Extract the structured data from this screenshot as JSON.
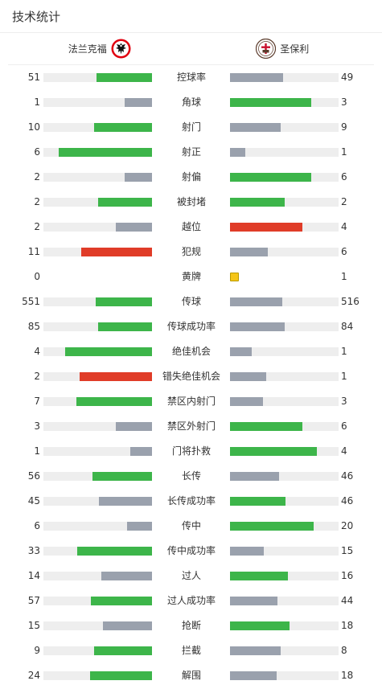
{
  "header": {
    "title": "技术统计"
  },
  "teams": {
    "home": {
      "name": "法兰克福",
      "logo": "eagle-crest-icon"
    },
    "away": {
      "name": "圣保利",
      "logo": "skull-crest-icon"
    }
  },
  "colors": {
    "win": "#3db54a",
    "lose": "#9aa1ad",
    "red": "#e03c28",
    "yellow": "#f5c518",
    "track": "#eeeeee"
  },
  "stats": [
    {
      "label": "控球率",
      "home": "51",
      "away": "49",
      "home_pct": 0.51,
      "away_pct": 0.49,
      "home_color": "win",
      "away_color": "lose"
    },
    {
      "label": "角球",
      "home": "1",
      "away": "3",
      "home_pct": 0.25,
      "away_pct": 0.75,
      "home_color": "lose",
      "away_color": "win"
    },
    {
      "label": "射门",
      "home": "10",
      "away": "9",
      "home_pct": 0.53,
      "away_pct": 0.47,
      "home_color": "win",
      "away_color": "lose"
    },
    {
      "label": "射正",
      "home": "6",
      "away": "1",
      "home_pct": 0.86,
      "away_pct": 0.14,
      "home_color": "win",
      "away_color": "lose"
    },
    {
      "label": "射偏",
      "home": "2",
      "away": "6",
      "home_pct": 0.25,
      "away_pct": 0.75,
      "home_color": "lose",
      "away_color": "win"
    },
    {
      "label": "被封堵",
      "home": "2",
      "away": "2",
      "home_pct": 0.5,
      "away_pct": 0.5,
      "home_color": "win",
      "away_color": "win"
    },
    {
      "label": "越位",
      "home": "2",
      "away": "4",
      "home_pct": 0.33,
      "away_pct": 0.67,
      "home_color": "lose",
      "away_color": "red"
    },
    {
      "label": "犯规",
      "home": "11",
      "away": "6",
      "home_pct": 0.65,
      "away_pct": 0.35,
      "home_color": "red",
      "away_color": "lose"
    },
    {
      "label": "黄牌",
      "home": "0",
      "away": "1",
      "home_pct": 0,
      "away_pct": 0.08,
      "home_color": "lose",
      "away_color": "yellow",
      "cards": true
    },
    {
      "label": "传球",
      "home": "551",
      "away": "516",
      "home_pct": 0.52,
      "away_pct": 0.48,
      "home_color": "win",
      "away_color": "lose"
    },
    {
      "label": "传球成功率",
      "home": "85",
      "away": "84",
      "home_pct": 0.5,
      "away_pct": 0.5,
      "home_color": "win",
      "away_color": "lose"
    },
    {
      "label": "绝佳机会",
      "home": "4",
      "away": "1",
      "home_pct": 0.8,
      "away_pct": 0.2,
      "home_color": "win",
      "away_color": "lose"
    },
    {
      "label": "错失绝佳机会",
      "home": "2",
      "away": "1",
      "home_pct": 0.67,
      "away_pct": 0.33,
      "home_color": "red",
      "away_color": "lose"
    },
    {
      "label": "禁区内射门",
      "home": "7",
      "away": "3",
      "home_pct": 0.7,
      "away_pct": 0.3,
      "home_color": "win",
      "away_color": "lose"
    },
    {
      "label": "禁区外射门",
      "home": "3",
      "away": "6",
      "home_pct": 0.33,
      "away_pct": 0.67,
      "home_color": "lose",
      "away_color": "win"
    },
    {
      "label": "门将扑救",
      "home": "1",
      "away": "4",
      "home_pct": 0.2,
      "away_pct": 0.8,
      "home_color": "lose",
      "away_color": "win"
    },
    {
      "label": "长传",
      "home": "56",
      "away": "46",
      "home_pct": 0.55,
      "away_pct": 0.45,
      "home_color": "win",
      "away_color": "lose"
    },
    {
      "label": "长传成功率",
      "home": "45",
      "away": "46",
      "home_pct": 0.49,
      "away_pct": 0.51,
      "home_color": "lose",
      "away_color": "win"
    },
    {
      "label": "传中",
      "home": "6",
      "away": "20",
      "home_pct": 0.23,
      "away_pct": 0.77,
      "home_color": "lose",
      "away_color": "win"
    },
    {
      "label": "传中成功率",
      "home": "33",
      "away": "15",
      "home_pct": 0.69,
      "away_pct": 0.31,
      "home_color": "win",
      "away_color": "lose"
    },
    {
      "label": "过人",
      "home": "14",
      "away": "16",
      "home_pct": 0.47,
      "away_pct": 0.53,
      "home_color": "lose",
      "away_color": "win"
    },
    {
      "label": "过人成功率",
      "home": "57",
      "away": "44",
      "home_pct": 0.56,
      "away_pct": 0.44,
      "home_color": "win",
      "away_color": "lose"
    },
    {
      "label": "抢断",
      "home": "15",
      "away": "18",
      "home_pct": 0.45,
      "away_pct": 0.55,
      "home_color": "lose",
      "away_color": "win"
    },
    {
      "label": "拦截",
      "home": "9",
      "away": "8",
      "home_pct": 0.53,
      "away_pct": 0.47,
      "home_color": "win",
      "away_color": "lose"
    },
    {
      "label": "解围",
      "home": "24",
      "away": "18",
      "home_pct": 0.57,
      "away_pct": 0.43,
      "home_color": "win",
      "away_color": "lose"
    }
  ]
}
